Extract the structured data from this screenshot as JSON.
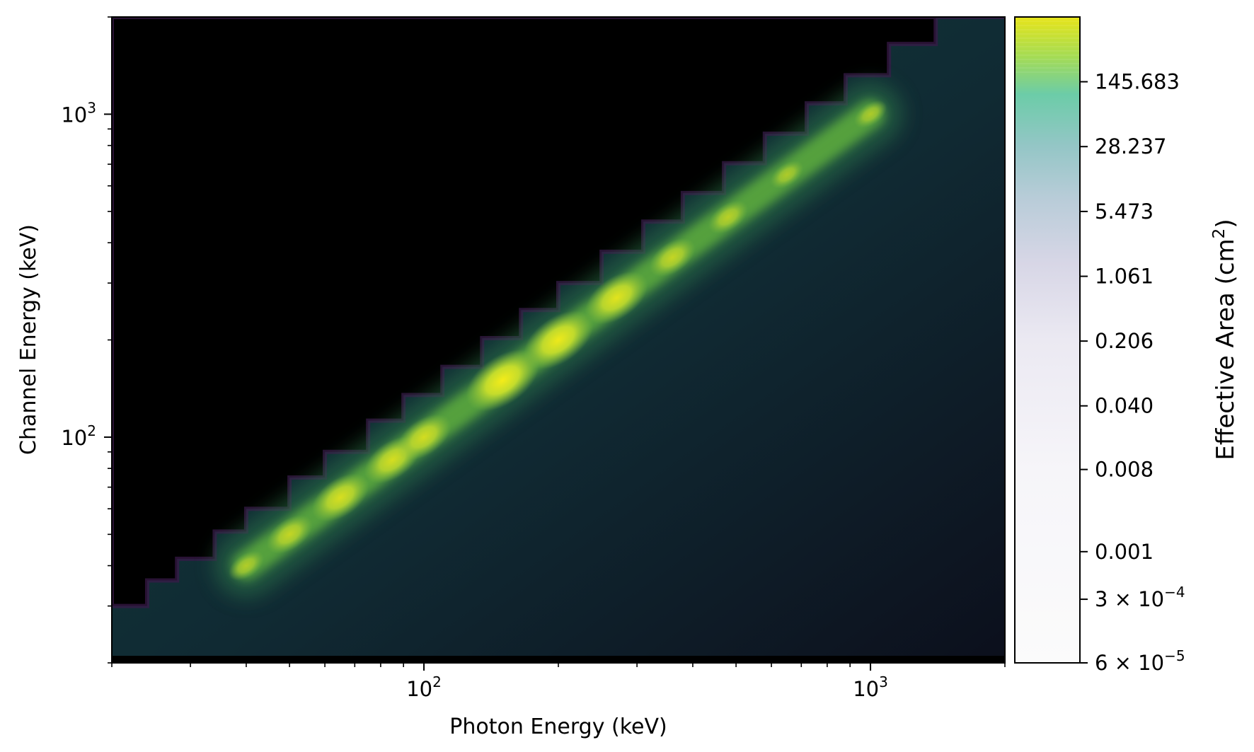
{
  "chart_data": {
    "type": "heatmap",
    "title": "",
    "xlabel": "Photon Energy (keV)",
    "ylabel": "Channel Energy (keV)",
    "x_scale": "log",
    "y_scale": "log",
    "xlim": [
      20,
      2000
    ],
    "ylim": [
      20,
      2000
    ],
    "x_major_ticks": [
      {
        "value": 100,
        "label": "10",
        "exp": "2"
      },
      {
        "value": 1000,
        "label": "10",
        "exp": "3"
      }
    ],
    "y_major_ticks": [
      {
        "value": 100,
        "label": "10",
        "exp": "2"
      },
      {
        "value": 1000,
        "label": "10",
        "exp": "3"
      }
    ],
    "colormap": "viridis-like contour fill",
    "colorbar": {
      "label": "Effective Area (cm",
      "label_sup": "2",
      "label_end": ")",
      "scale": "log",
      "range": [
        6e-05,
        750
      ],
      "ticks": [
        {
          "value": 145.683,
          "label": "145.683"
        },
        {
          "value": 28.237,
          "label": "28.237"
        },
        {
          "value": 5.473,
          "label": "5.473"
        },
        {
          "value": 1.061,
          "label": "1.061"
        },
        {
          "value": 0.206,
          "label": "0.206"
        },
        {
          "value": 0.04,
          "label": "0.040"
        },
        {
          "value": 0.008,
          "label": "0.008"
        },
        {
          "value": 0.001,
          "label": "0.001"
        },
        {
          "value": 0.0003,
          "label": "3 × 10",
          "exp": "−4"
        },
        {
          "value": 6e-05,
          "label": "6 × 10",
          "exp": "−5"
        }
      ]
    },
    "diagonal_peak_effective_area": [
      {
        "photon_kev": 40,
        "channel_kev": 40,
        "value": 110
      },
      {
        "photon_kev": 50,
        "channel_kev": 50,
        "value": 260
      },
      {
        "photon_kev": 65,
        "channel_kev": 65,
        "value": 420
      },
      {
        "photon_kev": 85,
        "channel_kev": 85,
        "value": 400
      },
      {
        "photon_kev": 100,
        "channel_kev": 100,
        "value": 380
      },
      {
        "photon_kev": 150,
        "channel_kev": 150,
        "value": 650
      },
      {
        "photon_kev": 200,
        "channel_kev": 200,
        "value": 600
      },
      {
        "photon_kev": 270,
        "channel_kev": 270,
        "value": 500
      },
      {
        "photon_kev": 360,
        "channel_kev": 360,
        "value": 260
      },
      {
        "photon_kev": 480,
        "channel_kev": 480,
        "value": 170
      },
      {
        "photon_kev": 650,
        "channel_kev": 650,
        "value": 80
      },
      {
        "photon_kev": 1000,
        "channel_kev": 1000,
        "value": 70
      }
    ]
  }
}
